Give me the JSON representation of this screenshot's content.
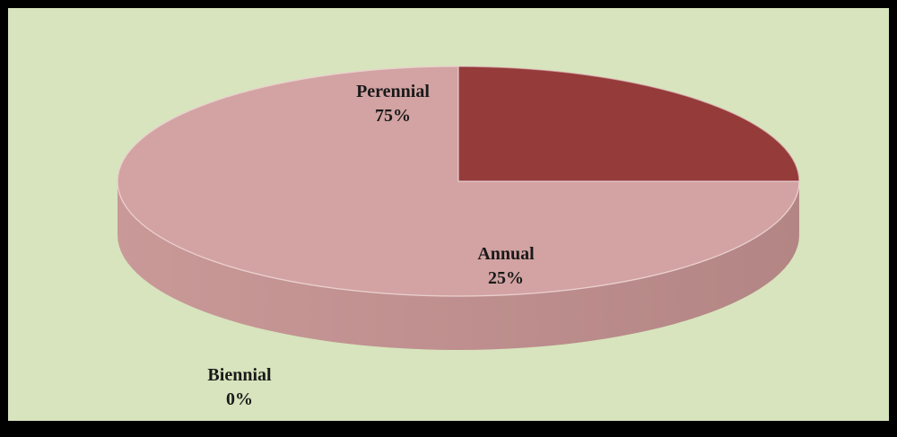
{
  "chart_data": {
    "type": "pie",
    "style": "3d",
    "title": "",
    "slices": [
      {
        "name": "Perennial",
        "value": 75,
        "percent_label": "75%",
        "color": "#d2a3a2"
      },
      {
        "name": "Annual",
        "value": 25,
        "percent_label": "25%",
        "color": "#953b3a"
      },
      {
        "name": "Biennial",
        "value": 0,
        "percent_label": "0%",
        "color": "#c0504d"
      }
    ],
    "legend": "none",
    "data_labels": "category and percent",
    "background_color": "#d7e4bd",
    "border_color": "#000000"
  }
}
